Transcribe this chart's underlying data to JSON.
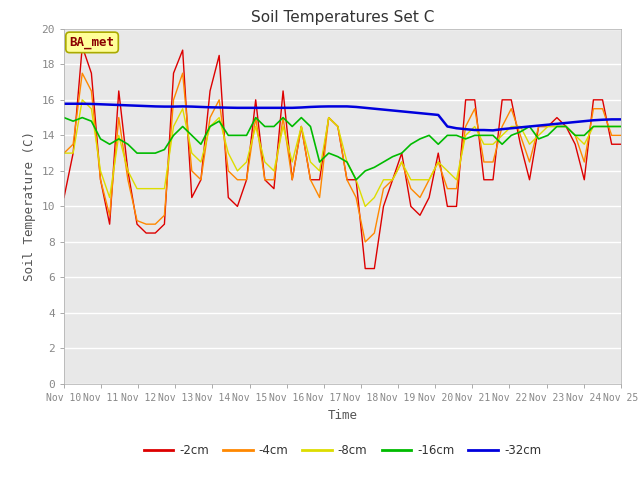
{
  "title": "Soil Temperatures Set C",
  "xlabel": "Time",
  "ylabel": "Soil Temperature (C)",
  "annotation": "BA_met",
  "ylim": [
    0,
    20
  ],
  "n_days": 15,
  "xtick_labels": [
    "Nov 10",
    "Nov 11",
    "Nov 12",
    "Nov 13",
    "Nov 14",
    "Nov 15",
    "Nov 16",
    "Nov 17",
    "Nov 18",
    "Nov 19",
    "Nov 20",
    "Nov 21",
    "Nov 22",
    "Nov 23",
    "Nov 24",
    "Nov 25"
  ],
  "series_labels": [
    "-2cm",
    "-4cm",
    "-8cm",
    "-16cm",
    "-32cm"
  ],
  "series_colors": [
    "#dd0000",
    "#ff8800",
    "#dddd00",
    "#00bb00",
    "#0000dd"
  ],
  "series_lw": [
    1.0,
    1.0,
    1.0,
    1.2,
    1.8
  ],
  "fig_bg": "#ffffff",
  "plot_bg": "#e8e8e8",
  "grid_color": "#ffffff",
  "t2cm": [
    10.5,
    13.0,
    19.0,
    17.5,
    11.5,
    9.0,
    16.5,
    12.0,
    9.0,
    8.5,
    8.5,
    9.0,
    17.5,
    18.8,
    10.5,
    11.5,
    16.5,
    18.5,
    10.5,
    10.0,
    11.5,
    16.0,
    11.5,
    11.0,
    16.5,
    11.5,
    14.5,
    11.5,
    11.5,
    15.0,
    14.5,
    11.5,
    11.5,
    6.5,
    6.5,
    10.0,
    11.5,
    13.0,
    10.0,
    9.5,
    10.5,
    13.0,
    10.0,
    10.0,
    16.0,
    16.0,
    11.5,
    11.5,
    16.0,
    16.0,
    13.5,
    11.5,
    14.5,
    14.5,
    15.0,
    14.5,
    13.5,
    11.5,
    16.0,
    16.0,
    13.5,
    13.5
  ],
  "t4cm": [
    13.0,
    13.5,
    17.5,
    16.5,
    11.5,
    9.5,
    15.0,
    11.5,
    9.2,
    9.0,
    9.0,
    9.5,
    16.0,
    17.5,
    12.0,
    11.5,
    15.0,
    16.0,
    12.0,
    11.5,
    11.5,
    15.0,
    11.5,
    11.5,
    15.0,
    11.5,
    14.5,
    11.5,
    10.5,
    15.0,
    14.5,
    11.5,
    10.5,
    8.0,
    8.5,
    11.0,
    11.5,
    12.5,
    11.0,
    10.5,
    11.5,
    12.5,
    11.0,
    11.0,
    14.5,
    15.5,
    12.5,
    12.5,
    14.5,
    15.5,
    14.0,
    12.5,
    14.5,
    14.5,
    14.5,
    14.5,
    14.0,
    12.5,
    15.5,
    15.5,
    14.0,
    14.0
  ],
  "t8cm": [
    13.0,
    13.0,
    16.0,
    15.5,
    12.0,
    10.5,
    14.0,
    12.0,
    11.0,
    11.0,
    11.0,
    11.0,
    14.5,
    15.5,
    13.0,
    12.5,
    14.5,
    15.0,
    13.0,
    12.0,
    12.5,
    14.5,
    12.5,
    12.0,
    14.5,
    12.5,
    14.5,
    12.5,
    12.0,
    15.0,
    14.5,
    12.5,
    11.5,
    10.0,
    10.5,
    11.5,
    11.5,
    12.5,
    11.5,
    11.5,
    11.5,
    12.5,
    12.0,
    11.5,
    14.0,
    14.5,
    13.5,
    13.5,
    14.0,
    14.5,
    14.5,
    13.5,
    14.0,
    14.5,
    14.5,
    14.5,
    14.0,
    13.5,
    14.5,
    14.5,
    14.5,
    14.5
  ],
  "t16cm": [
    15.0,
    14.8,
    15.0,
    14.8,
    13.8,
    13.5,
    13.8,
    13.5,
    13.0,
    13.0,
    13.0,
    13.2,
    14.0,
    14.5,
    14.0,
    13.5,
    14.5,
    14.8,
    14.0,
    14.0,
    14.0,
    15.0,
    14.5,
    14.5,
    15.0,
    14.5,
    15.0,
    14.5,
    12.5,
    13.0,
    12.8,
    12.5,
    11.5,
    12.0,
    12.2,
    12.5,
    12.8,
    13.0,
    13.5,
    13.8,
    14.0,
    13.5,
    14.0,
    14.0,
    13.8,
    14.0,
    14.0,
    14.0,
    13.5,
    14.0,
    14.2,
    14.5,
    13.8,
    14.0,
    14.5,
    14.5,
    14.0,
    14.0,
    14.5,
    14.5,
    14.5,
    14.5
  ],
  "t32cm": [
    15.78,
    15.78,
    15.78,
    15.77,
    15.75,
    15.73,
    15.71,
    15.69,
    15.67,
    15.65,
    15.63,
    15.62,
    15.62,
    15.63,
    15.62,
    15.6,
    15.58,
    15.57,
    15.56,
    15.55,
    15.55,
    15.55,
    15.55,
    15.55,
    15.55,
    15.55,
    15.57,
    15.6,
    15.62,
    15.63,
    15.63,
    15.63,
    15.6,
    15.55,
    15.5,
    15.45,
    15.4,
    15.35,
    15.3,
    15.25,
    15.2,
    15.15,
    14.5,
    14.4,
    14.35,
    14.3,
    14.3,
    14.28,
    14.35,
    14.4,
    14.45,
    14.5,
    14.55,
    14.6,
    14.65,
    14.7,
    14.75,
    14.8,
    14.85,
    14.88,
    14.9,
    14.9
  ]
}
